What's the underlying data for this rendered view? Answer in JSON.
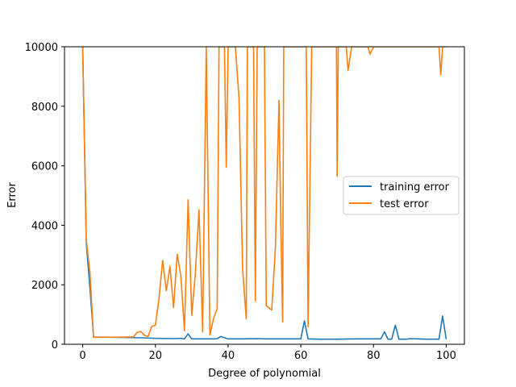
{
  "chart_data": {
    "type": "line",
    "title": "",
    "xlabel": "Degree of polynomial",
    "ylabel": "Error",
    "xlim": [
      -5,
      105
    ],
    "ylim": [
      0,
      10000
    ],
    "xticks": [
      0,
      20,
      40,
      60,
      80,
      100
    ],
    "yticks": [
      0,
      2000,
      4000,
      6000,
      8000,
      10000
    ],
    "grid": false,
    "legend_position": "center-right",
    "series": [
      {
        "name": "training error",
        "color": "#1f77b4",
        "x": [
          0,
          1,
          2,
          3,
          5,
          10,
          15,
          20,
          25,
          27,
          28,
          29,
          30,
          32,
          34,
          36,
          37,
          38,
          40,
          44,
          48,
          50,
          55,
          58,
          60,
          61,
          62,
          65,
          70,
          75,
          80,
          82,
          83,
          84,
          85,
          86,
          87,
          89,
          90,
          92,
          95,
          98,
          99,
          100
        ],
        "y": [
          10000,
          3400,
          1900,
          240,
          240,
          230,
          220,
          200,
          190,
          200,
          180,
          350,
          180,
          180,
          180,
          180,
          190,
          260,
          180,
          180,
          190,
          180,
          180,
          180,
          180,
          790,
          180,
          170,
          170,
          180,
          180,
          180,
          420,
          170,
          170,
          640,
          170,
          170,
          190,
          180,
          170,
          170,
          950,
          170
        ]
      },
      {
        "name": "test error",
        "color": "#ff7f0e",
        "x": [
          0,
          1,
          2,
          3,
          5,
          10,
          14,
          15,
          16,
          17,
          18,
          19,
          20,
          21,
          22,
          23,
          24,
          25,
          26,
          27,
          28,
          29,
          30,
          31,
          32,
          33,
          34,
          35,
          36,
          37,
          37.5,
          38,
          38.5,
          39,
          39.5,
          40,
          41,
          42,
          43,
          44,
          45,
          45.3,
          46,
          47,
          47.5,
          48,
          48.3,
          50,
          50.5,
          51,
          52,
          53,
          54,
          54.5,
          55,
          55.3,
          56,
          57,
          58,
          59,
          60,
          61,
          61.5,
          62,
          63,
          64,
          65,
          66,
          67,
          68,
          69,
          69.8,
          70,
          70.3,
          71,
          72,
          72.5,
          73,
          74,
          75,
          76,
          77,
          78,
          78.5,
          79,
          80,
          81,
          85,
          90,
          95,
          97,
          98,
          98.5,
          99,
          100
        ],
        "y": [
          10000,
          3500,
          2400,
          230,
          240,
          240,
          250,
          400,
          430,
          300,
          260,
          600,
          640,
          1550,
          2820,
          1800,
          2620,
          1230,
          3030,
          2300,
          450,
          4860,
          970,
          2400,
          4520,
          410,
          10000,
          310,
          860,
          1200,
          10000,
          10000,
          10000,
          10000,
          5950,
          10000,
          10000,
          10000,
          8300,
          2500,
          850,
          10000,
          10000,
          10000,
          1450,
          10000,
          10000,
          10000,
          1300,
          1250,
          1150,
          3200,
          8200,
          4000,
          750,
          10000,
          10000,
          10000,
          10000,
          10000,
          10000,
          10000,
          10000,
          580,
          10000,
          10000,
          10000,
          10000,
          10000,
          10000,
          10000,
          10000,
          5650,
          10000,
          10000,
          10000,
          10000,
          9200,
          10000,
          10000,
          10000,
          10000,
          10000,
          10000,
          9750,
          10000,
          10000,
          10000,
          10000,
          10000,
          10000,
          10000,
          9050,
          10000,
          10000
        ]
      }
    ]
  }
}
